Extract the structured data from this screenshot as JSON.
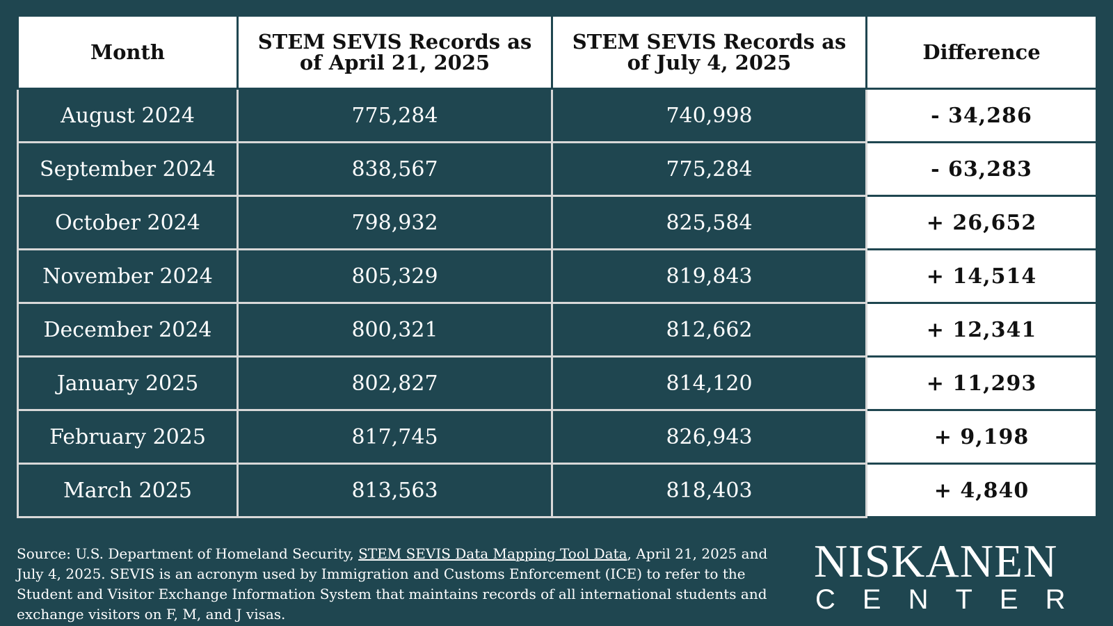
{
  "colors": {
    "background": "#1f4650",
    "header_bg": "#ffffff",
    "text_light": "#ffffff",
    "text_dark": "#111111",
    "grid": "#d8d8d8"
  },
  "chart_data": {
    "type": "table",
    "columns": [
      "Month",
      "STEM SEVIS Records as of April 21, 2025",
      "STEM SEVIS Records as of July 4, 2025",
      "Difference"
    ],
    "rows": [
      {
        "month": "August 2024",
        "april": "775,284",
        "july": "740,998",
        "difference": "- 34,286"
      },
      {
        "month": "September 2024",
        "april": "838,567",
        "july": "775,284",
        "difference": "- 63,283"
      },
      {
        "month": "October 2024",
        "april": "798,932",
        "july": "825,584",
        "difference": "+ 26,652"
      },
      {
        "month": "November 2024",
        "april": "805,329",
        "july": "819,843",
        "difference": "+ 14,514"
      },
      {
        "month": "December 2024",
        "april": "800,321",
        "july": "812,662",
        "difference": "+ 12,341"
      },
      {
        "month": "January 2025",
        "april": "802,827",
        "july": "814,120",
        "difference": "+ 11,293"
      },
      {
        "month": "February 2025",
        "april": "817,745",
        "july": "826,943",
        "difference": "+ 9,198"
      },
      {
        "month": "March 2025",
        "april": "813,563",
        "july": "818,403",
        "difference": "+ 4,840"
      }
    ]
  },
  "footer": {
    "source_prefix": "Source: U.S. Department of Homeland Security, ",
    "source_link": "STEM SEVIS Data Mapping Tool Data",
    "source_suffix": ", April 21, 2025 and July 4, 2025.",
    "note": "SEVIS is an acronym used by Immigration and Customs Enforcement (ICE) to refer to the Student and Visitor Exchange Information System that maintains records of all international students and exchange visitors on F, M, and J visas."
  },
  "logo": {
    "top": "NISKANEN",
    "bottom": "CENTER"
  }
}
